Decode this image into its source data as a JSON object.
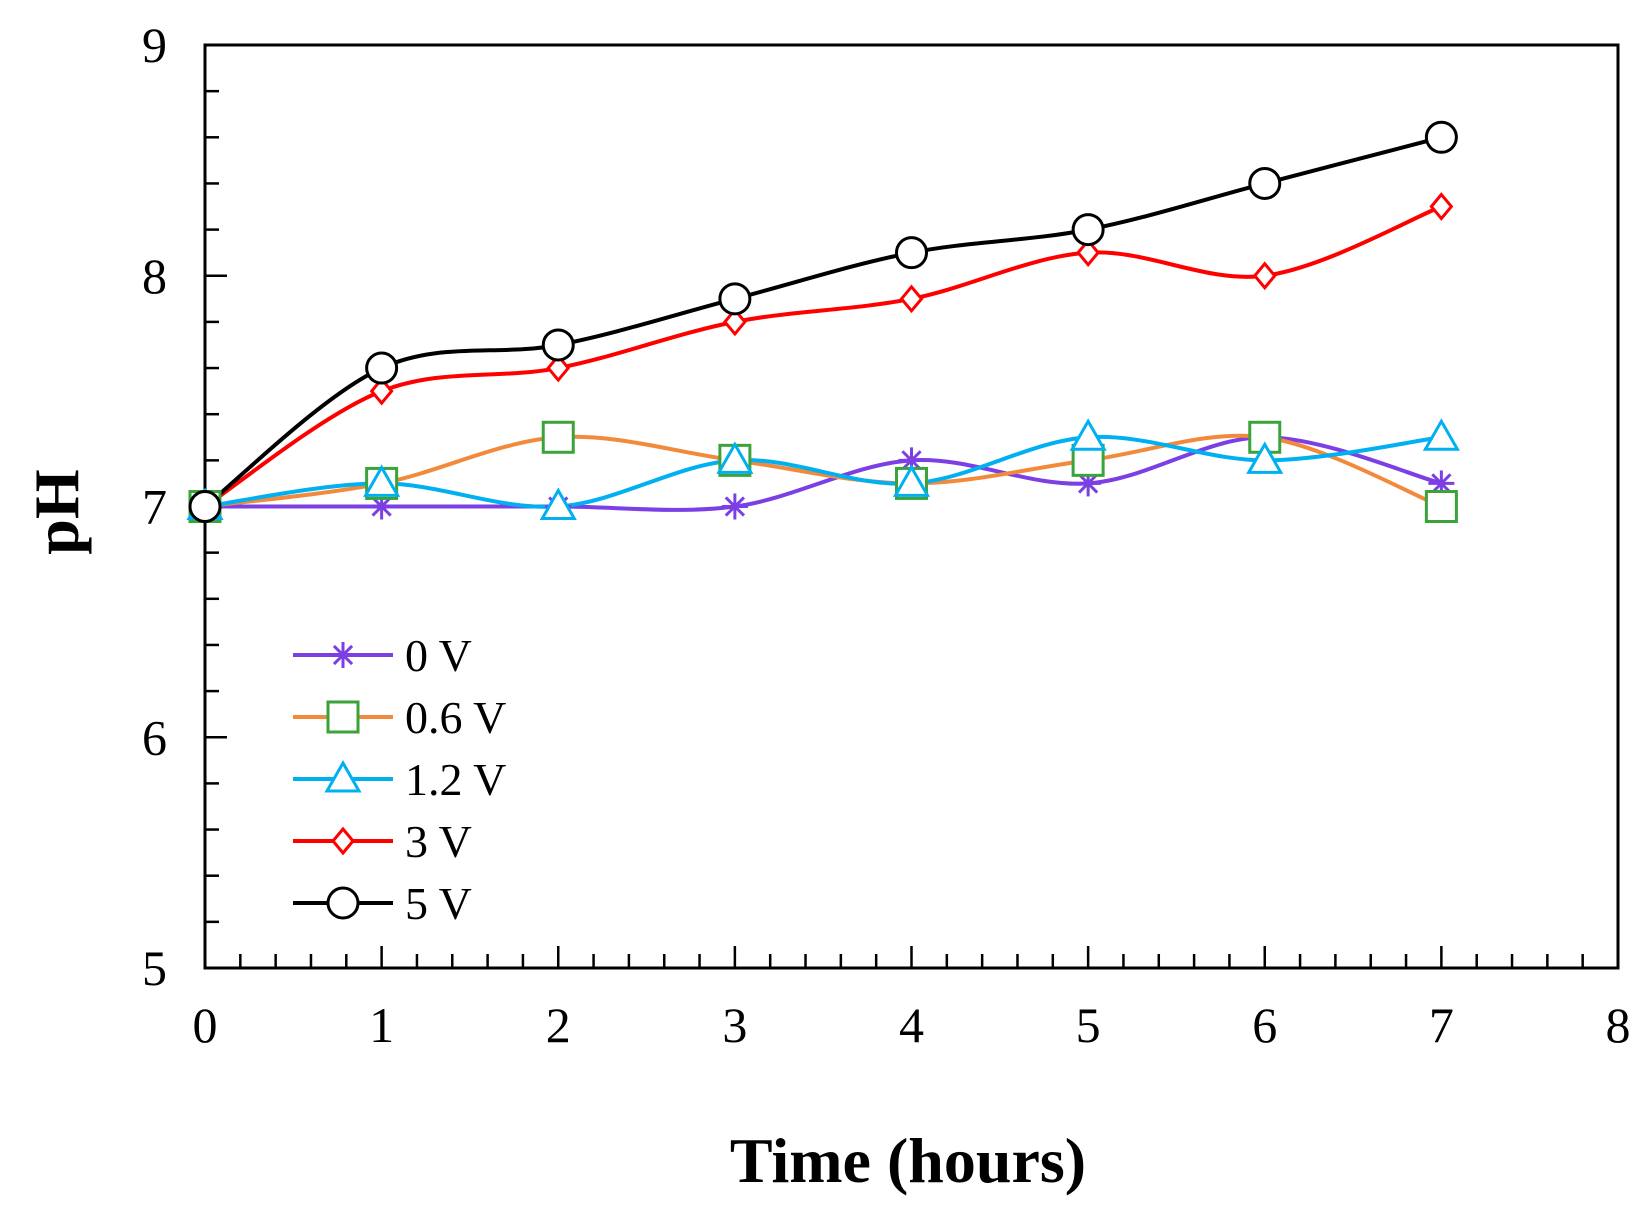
{
  "chart_data": {
    "type": "line",
    "title": "",
    "xlabel": "Time (hours)",
    "ylabel": "pH",
    "xlim": [
      0,
      8
    ],
    "ylim": [
      5,
      9
    ],
    "x_ticks": [
      "0",
      "1",
      "2",
      "3",
      "4",
      "5",
      "6",
      "7",
      "8"
    ],
    "y_ticks": [
      "5",
      "6",
      "7",
      "8",
      "9"
    ],
    "grid": false,
    "legend_position": "lower-left",
    "x": [
      0,
      1,
      2,
      3,
      4,
      5,
      6,
      7
    ],
    "series": [
      {
        "name": "0 V",
        "color": "#7b3fe4",
        "marker": "asterisk",
        "values": [
          7.0,
          7.0,
          7.0,
          7.0,
          7.2,
          7.1,
          7.3,
          7.1
        ]
      },
      {
        "name": "0.6 V",
        "color": "#f28a3c",
        "marker": "square",
        "marker_color": "#3aa33a",
        "values": [
          7.0,
          7.1,
          7.3,
          7.2,
          7.1,
          7.2,
          7.3,
          7.0
        ]
      },
      {
        "name": "1.2 V",
        "color": "#00b0f0",
        "marker": "triangle",
        "values": [
          7.0,
          7.1,
          7.0,
          7.2,
          7.1,
          7.3,
          7.2,
          7.3
        ]
      },
      {
        "name": "3 V",
        "color": "#ff0000",
        "marker": "diamond",
        "values": [
          7.0,
          7.5,
          7.6,
          7.8,
          7.9,
          8.1,
          8.0,
          8.3
        ]
      },
      {
        "name": "5 V",
        "color": "#000000",
        "marker": "circle",
        "values": [
          7.0,
          7.6,
          7.7,
          7.9,
          8.1,
          8.2,
          8.4,
          8.6
        ]
      }
    ]
  }
}
